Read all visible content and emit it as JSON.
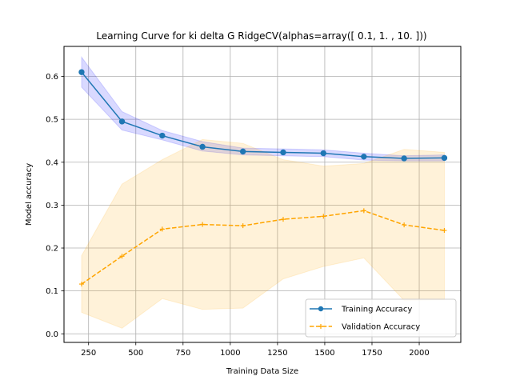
{
  "chart_data": {
    "type": "line",
    "title": "Learning Curve for ki delta G RidgeCV(alphas=array([ 0.1,  1. , 10. ]))",
    "xlabel": "Training Data Size",
    "ylabel": "Model accuracy",
    "xlim": [
      120,
      2220
    ],
    "ylim": [
      -0.02,
      0.67
    ],
    "x_ticks": [
      250,
      500,
      750,
      1000,
      1250,
      1500,
      1750,
      2000
    ],
    "y_ticks": [
      0.0,
      0.1,
      0.2,
      0.3,
      0.4,
      0.5,
      0.6
    ],
    "y_tick_labels": [
      "0.0",
      "0.1",
      "0.2",
      "0.3",
      "0.4",
      "0.5",
      "0.6"
    ],
    "grid": true,
    "legend_position": "lower-right",
    "x": [
      213,
      427,
      640,
      853,
      1067,
      1280,
      1493,
      1707,
      1920,
      2133
    ],
    "series": [
      {
        "name": "Training Accuracy",
        "color": "#1f77b4",
        "band_color": "#0000ff",
        "marker": "circle",
        "linestyle": "solid",
        "values": [
          0.61,
          0.495,
          0.462,
          0.436,
          0.425,
          0.423,
          0.421,
          0.413,
          0.409,
          0.41
        ],
        "lower": [
          0.575,
          0.475,
          0.452,
          0.426,
          0.417,
          0.415,
          0.413,
          0.405,
          0.403,
          0.403
        ],
        "upper": [
          0.645,
          0.518,
          0.474,
          0.448,
          0.433,
          0.431,
          0.429,
          0.421,
          0.415,
          0.417
        ]
      },
      {
        "name": "Validation Accuracy",
        "color": "#ffa500",
        "band_color": "#ffa500",
        "marker": "plus",
        "linestyle": "dashed",
        "values": [
          0.116,
          0.181,
          0.244,
          0.255,
          0.252,
          0.267,
          0.274,
          0.287,
          0.254,
          0.241
        ],
        "lower": [
          0.05,
          0.013,
          0.082,
          0.057,
          0.06,
          0.128,
          0.157,
          0.177,
          0.078,
          0.079
        ],
        "upper": [
          0.182,
          0.349,
          0.406,
          0.453,
          0.444,
          0.406,
          0.391,
          0.397,
          0.43,
          0.423
        ]
      }
    ]
  }
}
